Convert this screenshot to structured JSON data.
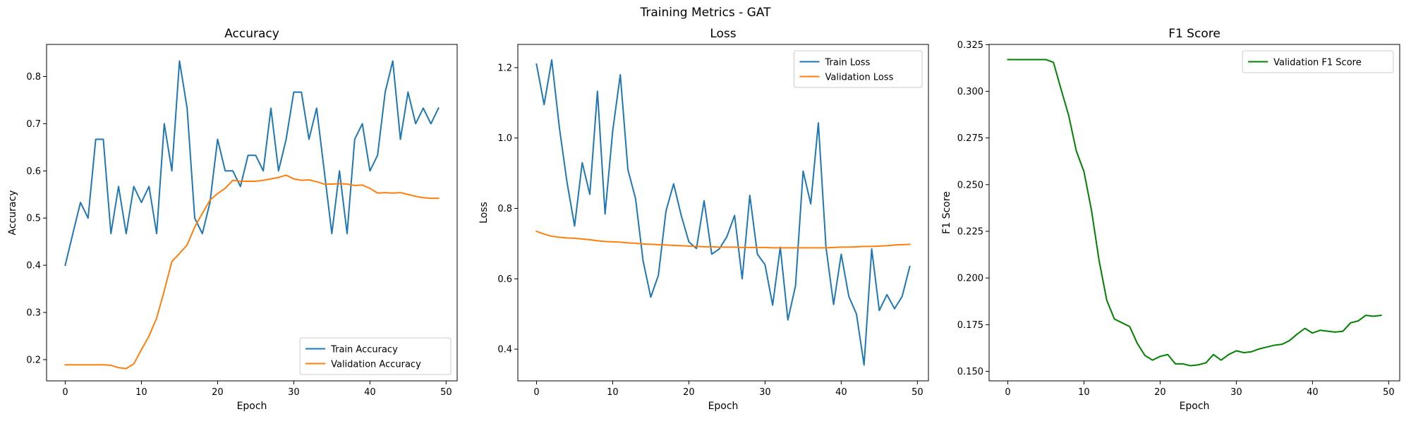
{
  "figure": {
    "title": "Training Metrics - GAT"
  },
  "chart_data": [
    {
      "type": "line",
      "title": "Accuracy",
      "xlabel": "Epoch",
      "ylabel": "Accuracy",
      "xlim": [
        -2.45,
        51.45
      ],
      "ylim": [
        0.155,
        0.868
      ],
      "xticks": [
        0,
        10,
        20,
        30,
        40,
        50
      ],
      "yticks": [
        0.2,
        0.3,
        0.4,
        0.5,
        0.6,
        0.7,
        0.8
      ],
      "legend": "lower-right",
      "series": [
        {
          "name": "Train Accuracy",
          "color": "#1f77b4",
          "y": [
            0.4,
            0.467,
            0.533,
            0.5,
            0.667,
            0.667,
            0.467,
            0.567,
            0.467,
            0.567,
            0.533,
            0.567,
            0.467,
            0.7,
            0.6,
            0.833,
            0.733,
            0.5,
            0.467,
            0.533,
            0.667,
            0.6,
            0.6,
            0.567,
            0.633,
            0.633,
            0.6,
            0.733,
            0.6,
            0.667,
            0.767,
            0.767,
            0.667,
            0.733,
            0.6,
            0.467,
            0.6,
            0.467,
            0.667,
            0.7,
            0.6,
            0.633,
            0.767,
            0.833,
            0.667,
            0.767,
            0.7,
            0.733,
            0.7,
            0.733
          ]
        },
        {
          "name": "Validation Accuracy",
          "color": "#ff7f0e",
          "y": [
            0.189,
            0.189,
            0.189,
            0.189,
            0.189,
            0.189,
            0.188,
            0.183,
            0.181,
            0.191,
            0.221,
            0.25,
            0.288,
            0.346,
            0.408,
            0.425,
            0.443,
            0.481,
            0.51,
            0.538,
            0.552,
            0.563,
            0.58,
            0.578,
            0.578,
            0.578,
            0.58,
            0.583,
            0.586,
            0.591,
            0.583,
            0.58,
            0.581,
            0.577,
            0.572,
            0.572,
            0.573,
            0.572,
            0.569,
            0.57,
            0.563,
            0.553,
            0.554,
            0.553,
            0.554,
            0.55,
            0.546,
            0.543,
            0.542,
            0.542
          ]
        }
      ]
    },
    {
      "type": "line",
      "title": "Loss",
      "xlabel": "Epoch",
      "ylabel": "Loss",
      "xlim": [
        -2.45,
        51.45
      ],
      "ylim": [
        0.31,
        1.266
      ],
      "xticks": [
        0,
        10,
        20,
        30,
        40,
        50
      ],
      "yticks": [
        0.4,
        0.6,
        0.8,
        1.0,
        1.2
      ],
      "legend": "top-right",
      "series": [
        {
          "name": "Train Loss",
          "color": "#1f77b4",
          "y": [
            1.21,
            1.095,
            1.222,
            1.03,
            0.875,
            0.75,
            0.93,
            0.84,
            1.133,
            0.784,
            1.02,
            1.18,
            0.91,
            0.828,
            0.65,
            0.548,
            0.61,
            0.793,
            0.87,
            0.78,
            0.705,
            0.686,
            0.822,
            0.67,
            0.685,
            0.72,
            0.78,
            0.6,
            0.837,
            0.67,
            0.64,
            0.525,
            0.69,
            0.483,
            0.58,
            0.906,
            0.813,
            1.043,
            0.69,
            0.527,
            0.67,
            0.55,
            0.5,
            0.355,
            0.685,
            0.51,
            0.555,
            0.515,
            0.55,
            0.635
          ]
        },
        {
          "name": "Validation Loss",
          "color": "#ff7f0e",
          "y": [
            0.735,
            0.727,
            0.721,
            0.718,
            0.716,
            0.715,
            0.713,
            0.711,
            0.708,
            0.706,
            0.705,
            0.704,
            0.702,
            0.701,
            0.699,
            0.698,
            0.697,
            0.696,
            0.695,
            0.694,
            0.693,
            0.692,
            0.691,
            0.691,
            0.69,
            0.69,
            0.69,
            0.689,
            0.689,
            0.689,
            0.689,
            0.688,
            0.688,
            0.688,
            0.688,
            0.688,
            0.688,
            0.688,
            0.688,
            0.689,
            0.69,
            0.69,
            0.691,
            0.692,
            0.692,
            0.693,
            0.694,
            0.696,
            0.697,
            0.698
          ]
        }
      ]
    },
    {
      "type": "line",
      "title": "F1 Score",
      "xlabel": "Epoch",
      "ylabel": "F1 Score",
      "xlim": [
        -2.45,
        51.45
      ],
      "ylim": [
        0.1449,
        0.3251
      ],
      "xticks": [
        0,
        10,
        20,
        30,
        40,
        50
      ],
      "yticks": [
        0.15,
        0.175,
        0.2,
        0.225,
        0.25,
        0.275,
        0.3,
        0.325
      ],
      "legend": "top-right",
      "series": [
        {
          "name": "Validation F1 Score",
          "color": "#008000",
          "y": [
            0.317,
            0.317,
            0.317,
            0.317,
            0.317,
            0.317,
            0.3155,
            0.301,
            0.287,
            0.268,
            0.257,
            0.236,
            0.209,
            0.188,
            0.178,
            0.176,
            0.174,
            0.165,
            0.1585,
            0.156,
            0.158,
            0.159,
            0.154,
            0.154,
            0.153,
            0.1535,
            0.1545,
            0.159,
            0.156,
            0.159,
            0.161,
            0.16,
            0.1605,
            0.162,
            0.163,
            0.164,
            0.1645,
            0.1665,
            0.17,
            0.173,
            0.1705,
            0.172,
            0.1715,
            0.171,
            0.1715,
            0.176,
            0.177,
            0.18,
            0.1795,
            0.18
          ]
        }
      ]
    }
  ]
}
